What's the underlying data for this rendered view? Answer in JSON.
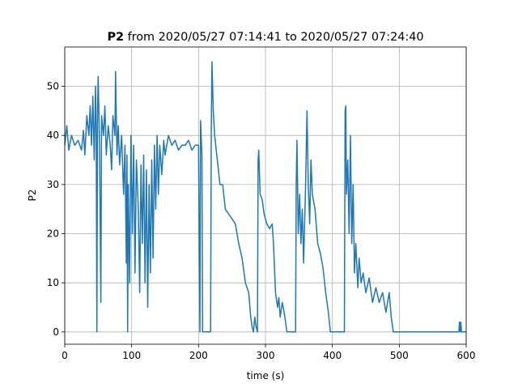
{
  "chart_data": {
    "type": "line",
    "title_bold": "P2",
    "title": "from 2020/05/27 07:14:41 to 2020/05/27 07:24:40",
    "x_label": "time (s)",
    "y_label": "P2",
    "color": "#1f77b4",
    "grid": true,
    "xlim": [
      0,
      600
    ],
    "ylim": [
      -2.5,
      58
    ],
    "xticks": [
      0,
      100,
      200,
      300,
      400,
      500,
      600
    ],
    "yticks": [
      0,
      10,
      20,
      30,
      40,
      50
    ],
    "x": [
      0,
      3,
      6,
      10,
      15,
      20,
      25,
      28,
      30,
      33,
      36,
      38,
      40,
      42,
      44,
      46,
      47,
      48,
      49,
      50,
      52,
      54,
      55,
      58,
      60,
      62,
      65,
      68,
      70,
      72,
      75,
      76,
      78,
      80,
      82,
      85,
      88,
      90,
      92,
      93,
      94,
      95,
      97,
      99,
      101,
      103,
      105,
      107,
      110,
      112,
      114,
      116,
      118,
      120,
      122,
      124,
      126,
      128,
      130,
      132,
      134,
      136,
      138,
      140,
      142,
      145,
      148,
      150,
      155,
      160,
      165,
      170,
      175,
      180,
      185,
      190,
      195,
      200,
      202,
      203,
      205,
      206,
      218,
      219,
      220,
      222,
      224,
      228,
      232,
      236,
      240,
      245,
      250,
      255,
      260,
      265,
      270,
      275,
      278,
      280,
      282,
      284,
      286,
      288,
      289,
      290,
      292,
      295,
      298,
      302,
      306,
      310,
      312,
      315,
      318,
      320,
      322,
      325,
      328,
      330,
      332,
      345,
      346,
      347,
      349,
      351,
      353,
      355,
      357,
      360,
      362,
      364,
      366,
      368,
      370,
      374,
      378,
      382,
      386,
      390,
      394,
      397,
      418,
      419,
      420,
      421,
      423,
      425,
      427,
      429,
      431,
      433,
      435,
      438,
      440,
      443,
      446,
      450,
      455,
      460,
      465,
      470,
      475,
      480,
      485,
      488,
      491,
      495,
      500,
      550,
      589,
      590,
      591,
      592,
      593,
      600
    ],
    "values": [
      38,
      42,
      37,
      40,
      38,
      39,
      37,
      41,
      36,
      44,
      40,
      46,
      38,
      48,
      35,
      50,
      40,
      0,
      45,
      52,
      38,
      6,
      44,
      40,
      46,
      36,
      42,
      38,
      33,
      44,
      40,
      53,
      36,
      42,
      34,
      40,
      28,
      38,
      14,
      36,
      0,
      30,
      10,
      40,
      20,
      38,
      12,
      35,
      25,
      8,
      34,
      18,
      36,
      10,
      33,
      5,
      30,
      12,
      35,
      15,
      38,
      25,
      40,
      28,
      38,
      32,
      39,
      36,
      40,
      38,
      39,
      37,
      38,
      38,
      39,
      37,
      38,
      38,
      0,
      43,
      36,
      0,
      0,
      40,
      55,
      45,
      40,
      35,
      30,
      30,
      25,
      24,
      23,
      22,
      18,
      15,
      10,
      8,
      3,
      1,
      0,
      3,
      1,
      0,
      35,
      37,
      28,
      27,
      24,
      22,
      21,
      22,
      18,
      8,
      5,
      7,
      3,
      6,
      4,
      2,
      0,
      0,
      30,
      39,
      20,
      28,
      18,
      25,
      14,
      30,
      45,
      30,
      22,
      35,
      28,
      25,
      18,
      16,
      13,
      8,
      4,
      0,
      0,
      45,
      46,
      28,
      35,
      20,
      40,
      18,
      30,
      12,
      18,
      9,
      15,
      10,
      12,
      8,
      11,
      6,
      9,
      6,
      8,
      4,
      8,
      3,
      0,
      0,
      0,
      0,
      0,
      2,
      0,
      2,
      0,
      0
    ]
  }
}
